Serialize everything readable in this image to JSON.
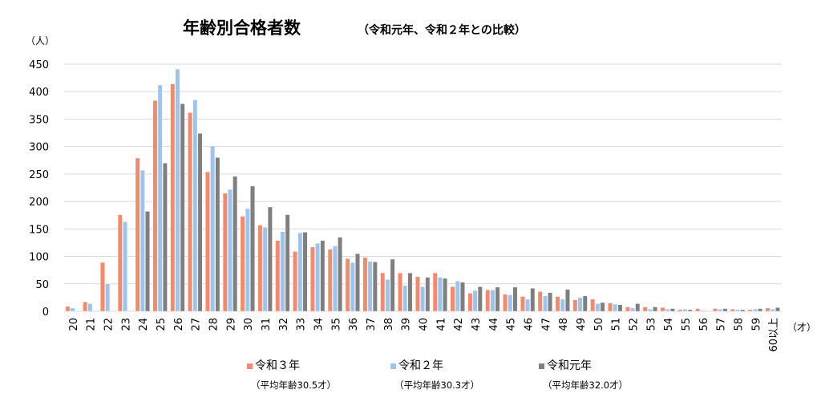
{
  "chart_data": {
    "type": "bar",
    "title": "年齢別合格者数",
    "subtitle": "（令和元年、令和２年との比較）",
    "ylabel": "（人）",
    "xlabel": "（才）",
    "ylim": [
      0,
      450
    ],
    "yticks": [
      0,
      50,
      100,
      150,
      200,
      250,
      300,
      350,
      400,
      450
    ],
    "grid": true,
    "legend_position": "bottom",
    "categories": [
      "20",
      "21",
      "22",
      "23",
      "24",
      "25",
      "26",
      "27",
      "28",
      "29",
      "30",
      "31",
      "32",
      "33",
      "34",
      "35",
      "36",
      "37",
      "38",
      "39",
      "40",
      "41",
      "42",
      "43",
      "44",
      "45",
      "46",
      "47",
      "48",
      "49",
      "50",
      "51",
      "52",
      "53",
      "54",
      "55",
      "56",
      "57",
      "58",
      "59",
      "60以上"
    ],
    "series": [
      {
        "name": "令和３年",
        "note": "（平均年齢30.5才）",
        "color": "#F4896B",
        "values": [
          9,
          17,
          89,
          176,
          279,
          384,
          414,
          362,
          254,
          215,
          173,
          157,
          129,
          109,
          117,
          113,
          96,
          98,
          70,
          70,
          63,
          70,
          45,
          33,
          39,
          31,
          27,
          36,
          27,
          21,
          22,
          15,
          8,
          8,
          7,
          3,
          5,
          5,
          4,
          3,
          6
        ]
      },
      {
        "name": "令和２年",
        "note": "（平均年齢30.3才）",
        "color": "#9DC3F0",
        "values": [
          6,
          14,
          50,
          163,
          257,
          412,
          441,
          385,
          301,
          222,
          187,
          153,
          145,
          143,
          124,
          119,
          89,
          91,
          58,
          47,
          45,
          62,
          55,
          38,
          39,
          30,
          22,
          28,
          22,
          25,
          14,
          13,
          6,
          4,
          4,
          4,
          2,
          4,
          3,
          4,
          4
        ]
      },
      {
        "name": "令和元年",
        "note": "（平均年齢32.0才）",
        "color": "#7F7F7F",
        "values": [
          0,
          0,
          0,
          0,
          182,
          270,
          378,
          324,
          280,
          246,
          228,
          190,
          176,
          144,
          129,
          135,
          105,
          90,
          95,
          70,
          62,
          60,
          53,
          45,
          44,
          44,
          42,
          34,
          40,
          28,
          16,
          12,
          14,
          8,
          5,
          3,
          0,
          5,
          3,
          5,
          7
        ]
      }
    ]
  }
}
